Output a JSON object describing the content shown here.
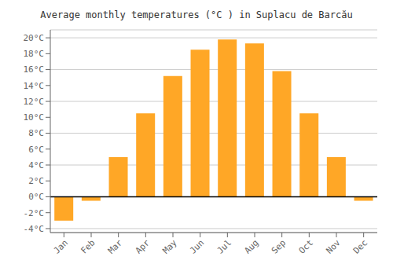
{
  "chart_data": {
    "type": "bar",
    "title": "Average monthly temperatures (°C ) in Suplacu de Barcău",
    "categories": [
      "Jan",
      "Feb",
      "Mar",
      "Apr",
      "May",
      "Jun",
      "Jul",
      "Aug",
      "Sep",
      "Oct",
      "Nov",
      "Dec"
    ],
    "values": [
      -3.0,
      -0.5,
      5.0,
      10.5,
      15.2,
      18.5,
      19.8,
      19.3,
      15.8,
      10.5,
      5.0,
      -0.5
    ],
    "color": "#FFA726",
    "ylim": [
      -4.5,
      21
    ],
    "yticks": [
      {
        "value": -4,
        "label": "-4°C"
      },
      {
        "value": -2,
        "label": "-2°C"
      },
      {
        "value": 0,
        "label": "0°C"
      },
      {
        "value": 2,
        "label": "2°C"
      },
      {
        "value": 4,
        "label": "4°C"
      },
      {
        "value": 6,
        "label": "6°C"
      },
      {
        "value": 8,
        "label": "8°C"
      },
      {
        "value": 10,
        "label": "10°C"
      },
      {
        "value": 12,
        "label": "12°C"
      },
      {
        "value": 14,
        "label": "14°C"
      },
      {
        "value": 16,
        "label": "16°C"
      },
      {
        "value": 18,
        "label": "18°C"
      },
      {
        "value": 20,
        "label": "20°C"
      }
    ],
    "grid": true
  }
}
